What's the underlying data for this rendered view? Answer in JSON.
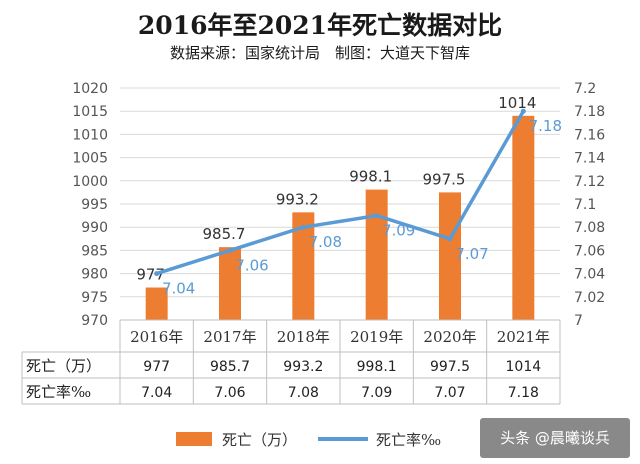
{
  "title": "2016年至2021年死亡数据对比",
  "subtitle": "数据来源：国家统计局　制图：大道天下智库",
  "watermark": "头条 @晨曦谈兵",
  "colors": {
    "bar": "#ed7d31",
    "line": "#5b9bd5",
    "grid": "#d9d9d9"
  },
  "chart_data": {
    "type": "bar",
    "categories": [
      "2016年",
      "2017年",
      "2018年",
      "2019年",
      "2020年",
      "2021年"
    ],
    "series": [
      {
        "name": "死亡（万）",
        "type": "bar",
        "axis": "left",
        "values": [
          977,
          985.7,
          993.2,
          998.1,
          997.5,
          1014
        ],
        "labels": [
          "977",
          "985.7",
          "993.2",
          "998.1",
          "997.5",
          "1014"
        ]
      },
      {
        "name": "死亡率‰",
        "type": "line",
        "axis": "right",
        "values": [
          7.04,
          7.06,
          7.08,
          7.09,
          7.07,
          7.18
        ],
        "labels": [
          "7.04",
          "7.06",
          "7.08",
          "7.09",
          "7.07",
          "7.18"
        ]
      }
    ],
    "y_left": {
      "range": [
        970,
        1020
      ],
      "ticks": [
        "970",
        "975",
        "980",
        "985",
        "990",
        "995",
        "1000",
        "1005",
        "1010",
        "1015",
        "1020"
      ]
    },
    "y_right": {
      "range": [
        7,
        7.2
      ],
      "ticks": [
        "7",
        "7.02",
        "7.04",
        "7.06",
        "7.08",
        "7.1",
        "7.12",
        "7.14",
        "7.16",
        "7.18",
        "7.2"
      ]
    },
    "grid": true,
    "legend": "bottom",
    "data_table": true
  }
}
